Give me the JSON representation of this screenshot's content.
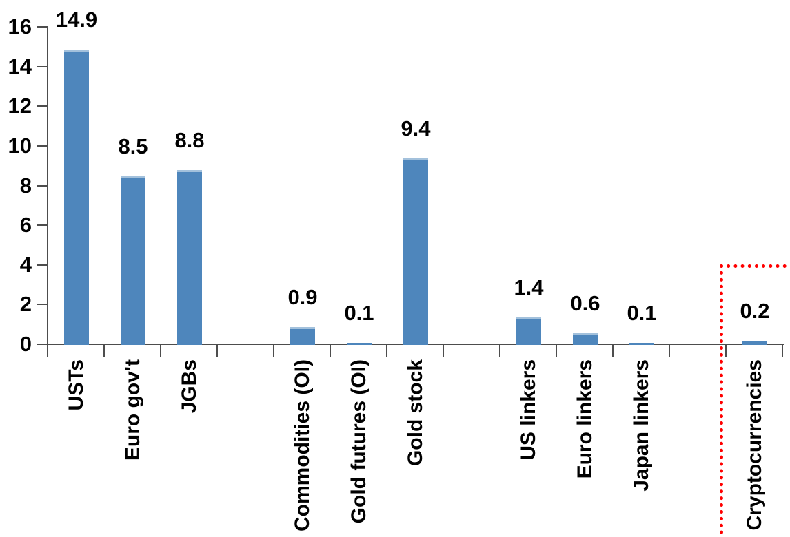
{
  "chart_data": {
    "type": "bar",
    "title": "",
    "xlabel": "",
    "ylabel": "",
    "categories": [
      "USTs",
      "Euro gov't",
      "JGBs",
      "Commodities (OI)",
      "Gold futures (OI)",
      "Gold stock",
      "US linkers",
      "Euro linkers",
      "Japan linkers",
      "Cryptocurrencies"
    ],
    "values": [
      14.9,
      8.5,
      8.8,
      0.9,
      0.1,
      9.4,
      1.4,
      0.6,
      0.1,
      0.2
    ],
    "value_labels": [
      "14.9",
      "8.5",
      "8.8",
      "0.9",
      "0.1",
      "9.4",
      "1.4",
      "0.6",
      "0.1",
      "0.2"
    ],
    "ylim": [
      0,
      16
    ],
    "yticks": [
      0,
      2,
      4,
      6,
      8,
      10,
      12,
      14,
      16
    ],
    "bar_color": "#4e86bc",
    "axis_color": "#4d4d4d",
    "text_color": "#000000",
    "highlight": {
      "category": "Cryptocurrencies",
      "style": "dotted-box",
      "color": "#ff0000"
    },
    "layout": {
      "slots": [
        0,
        1,
        2,
        4,
        5,
        6,
        8,
        9,
        10,
        12
      ],
      "total_slots": 13,
      "grid": false,
      "legend": false,
      "category_label_rotation": -90,
      "value_labels_above_bars": true
    }
  }
}
